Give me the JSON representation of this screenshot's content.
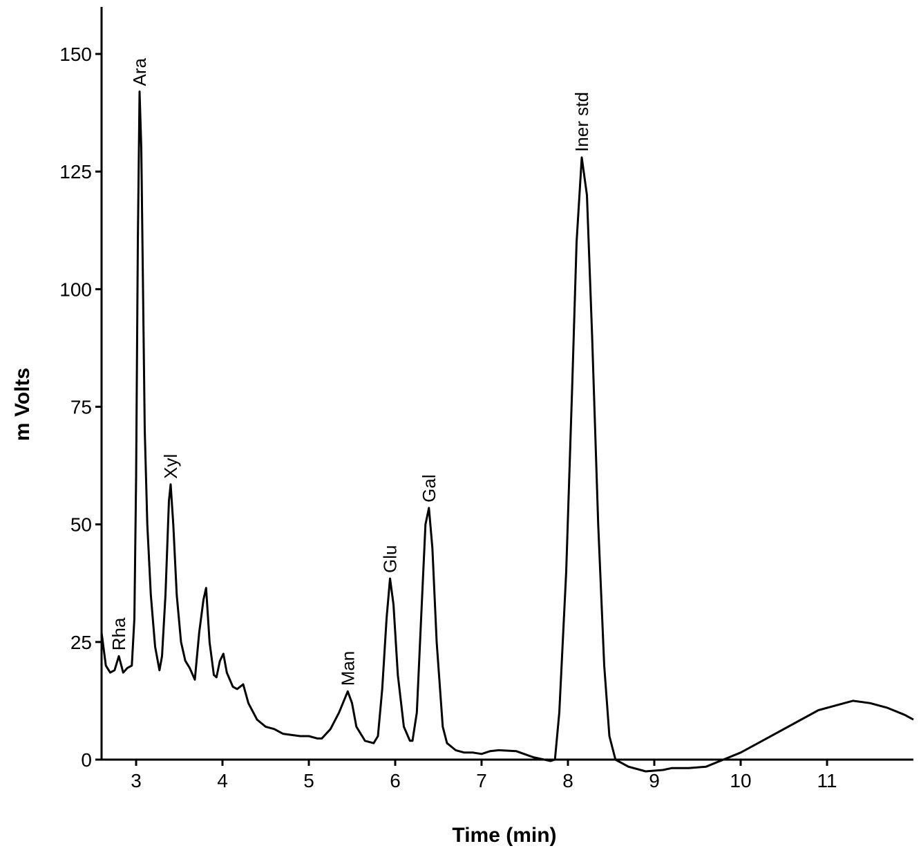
{
  "chart_data": {
    "type": "line",
    "xlabel": "Time (min)",
    "ylabel": "m Volts",
    "x": [
      2.6,
      2.65,
      2.7,
      2.75,
      2.8,
      2.85,
      2.9,
      2.95,
      2.98,
      3.0,
      3.02,
      3.04,
      3.06,
      3.08,
      3.1,
      3.13,
      3.17,
      3.22,
      3.27,
      3.3,
      3.34,
      3.38,
      3.4,
      3.43,
      3.47,
      3.52,
      3.57,
      3.62,
      3.68,
      3.73,
      3.78,
      3.81,
      3.85,
      3.9,
      3.93,
      3.97,
      4.01,
      4.05,
      4.12,
      4.17,
      4.24,
      4.3,
      4.4,
      4.5,
      4.6,
      4.7,
      4.9,
      5.0,
      5.1,
      5.15,
      5.25,
      5.35,
      5.45,
      5.5,
      5.55,
      5.65,
      5.75,
      5.8,
      5.85,
      5.9,
      5.94,
      5.98,
      6.03,
      6.1,
      6.17,
      6.2,
      6.25,
      6.3,
      6.35,
      6.39,
      6.43,
      6.48,
      6.55,
      6.6,
      6.7,
      6.8,
      6.9,
      7.0,
      7.1,
      7.2,
      7.4,
      7.6,
      7.8,
      7.85,
      7.9,
      7.98,
      8.05,
      8.1,
      8.16,
      8.22,
      8.28,
      8.35,
      8.42,
      8.48,
      8.55,
      8.7,
      8.9,
      9.1,
      9.2,
      9.4,
      9.6,
      9.8,
      10.0,
      10.3,
      10.6,
      10.9,
      11.1,
      11.3,
      11.5,
      11.7,
      11.9,
      12.0
    ],
    "values": [
      27,
      20,
      18.5,
      19,
      22,
      18.5,
      19.5,
      20,
      30,
      60,
      110,
      142,
      130,
      100,
      70,
      50,
      35,
      24,
      19,
      22,
      35,
      55,
      58.5,
      50,
      35,
      25,
      21,
      19.5,
      17,
      27,
      34,
      36.5,
      25,
      18,
      17.5,
      21,
      22.5,
      18.5,
      15.5,
      15,
      16,
      12,
      8.5,
      7,
      6.5,
      5.5,
      5,
      5,
      4.5,
      4.5,
      6.5,
      10,
      14.5,
      12,
      7,
      4,
      3.5,
      5,
      15,
      30,
      38.5,
      33,
      18,
      7,
      4,
      4,
      10,
      30,
      50,
      53.5,
      45,
      25,
      7,
      3.5,
      2,
      1.5,
      1.5,
      1.2,
      1.8,
      2,
      1.8,
      0.5,
      -0.3,
      0,
      10,
      40,
      80,
      110,
      128,
      120,
      90,
      50,
      20,
      5,
      0,
      -1.5,
      -2.5,
      -2.2,
      -1.8,
      -1.8,
      -1.5,
      0,
      1.5,
      4.5,
      7.5,
      10.5,
      11.5,
      12.5,
      12,
      11,
      9.5,
      8.5
    ],
    "color": "#000000",
    "xlim": [
      2.6,
      12.0
    ],
    "ylim": [
      0,
      160
    ],
    "xticks": [
      3,
      4,
      5,
      6,
      7,
      8,
      9,
      10,
      11
    ],
    "yticks": [
      0,
      25,
      50,
      75,
      100,
      125,
      150
    ],
    "annotations": [
      {
        "text": "Rha",
        "x": 2.8,
        "y": 22
      },
      {
        "text": "Ara",
        "x": 3.04,
        "y": 142
      },
      {
        "text": "Xyl",
        "x": 3.4,
        "y": 58.5
      },
      {
        "text": "Man",
        "x": 5.45,
        "y": 14.5
      },
      {
        "text": "Glu",
        "x": 5.94,
        "y": 38.5
      },
      {
        "text": "Gal",
        "x": 6.39,
        "y": 53.5
      },
      {
        "text": "Iner std",
        "x": 8.16,
        "y": 128
      }
    ]
  }
}
